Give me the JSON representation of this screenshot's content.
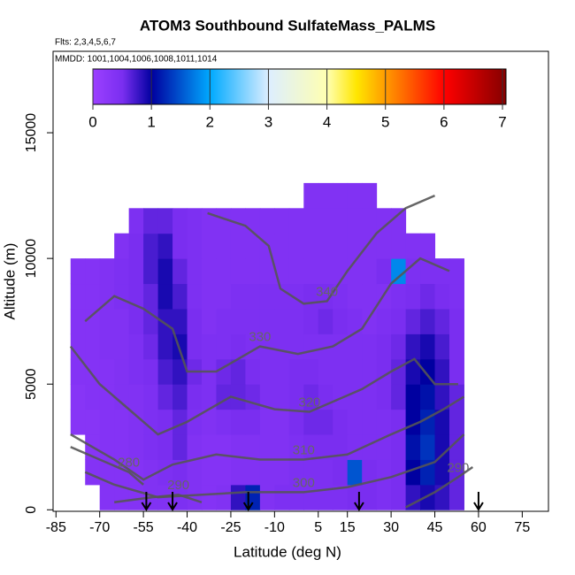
{
  "chart_data": {
    "type": "heatmap",
    "title": "ATOM3 Southbound SulfateMass_PALMS",
    "subtitle": "Flts: 2,3,4,5,6,7",
    "annotation": "MMDD: 1001,1004,1006,1008,1011,1014",
    "x_label": "Latitude (deg N)",
    "y_label": "Altitude (m)",
    "xlim": [
      -86,
      84
    ],
    "ylim": [
      -60,
      18240
    ],
    "xticks": [
      -85,
      -70,
      -55,
      -40,
      -25,
      -10,
      5,
      15,
      30,
      45,
      60,
      75
    ],
    "yticks": [
      0,
      5000,
      10000,
      15000
    ],
    "colorbar": {
      "lim": [
        0,
        7.06
      ],
      "ticks": [
        0,
        1,
        2,
        3,
        4,
        5,
        6,
        7
      ],
      "colorscale": [
        [
          0,
          "#9b40ff"
        ],
        [
          0.5,
          "#7a2ef0"
        ],
        [
          1,
          "#0000a0"
        ],
        [
          2,
          "#00aaff"
        ],
        [
          3,
          "#ddeeff"
        ],
        [
          4,
          "#ffffb0"
        ],
        [
          4.5,
          "#ffe600"
        ],
        [
          5,
          "#ff9a00"
        ],
        [
          6,
          "#ff0000"
        ],
        [
          7,
          "#8b0000"
        ]
      ]
    },
    "heatmap": {
      "x_edges": [
        -80,
        -75,
        -70,
        -65,
        -60,
        -55,
        -50,
        -45,
        -40,
        -35,
        -30,
        -25,
        -20,
        -15,
        -10,
        -5,
        0,
        5,
        10,
        15,
        20,
        25,
        30,
        35,
        40,
        45,
        50,
        55
      ],
      "y_edges": [
        0,
        1000,
        2000,
        3000,
        4000,
        5000,
        6000,
        7000,
        8000,
        9000,
        10000,
        11000,
        12000,
        13000
      ],
      "values": [
        [
          null,
          null,
          0.35,
          0.35,
          0.35,
          0.4,
          0.4,
          0.45,
          0.4,
          0.35,
          0.4,
          0.8,
          1.2,
          0.4,
          0.45,
          0.45,
          0.45,
          0.45,
          0.45,
          0.5,
          0.5,
          0.45,
          0.5,
          0.8,
          0.9,
          0.8,
          0.6
        ],
        [
          null,
          0.35,
          0.35,
          0.35,
          0.35,
          0.4,
          0.45,
          0.5,
          0.4,
          0.35,
          0.35,
          0.4,
          0.4,
          0.4,
          0.4,
          0.45,
          0.45,
          0.45,
          0.5,
          1.5,
          0.5,
          0.45,
          0.5,
          1.0,
          1.2,
          0.9,
          0.6
        ],
        [
          null,
          0.3,
          0.35,
          0.35,
          0.4,
          0.45,
          0.5,
          0.6,
          0.4,
          0.35,
          0.35,
          0.4,
          0.4,
          0.4,
          0.4,
          0.45,
          0.5,
          0.5,
          0.5,
          0.45,
          0.45,
          0.45,
          0.5,
          1.1,
          1.3,
          0.9,
          0.6
        ],
        [
          0.3,
          0.3,
          0.35,
          0.35,
          0.4,
          0.45,
          0.5,
          0.6,
          0.45,
          0.4,
          0.45,
          0.5,
          0.5,
          0.4,
          0.4,
          0.5,
          0.55,
          0.55,
          0.5,
          0.45,
          0.45,
          0.45,
          0.5,
          1.0,
          1.2,
          0.9,
          0.6
        ],
        [
          0.3,
          0.35,
          0.35,
          0.4,
          0.4,
          0.45,
          0.6,
          0.7,
          0.5,
          0.45,
          0.6,
          0.6,
          0.55,
          0.45,
          0.45,
          0.5,
          0.55,
          0.5,
          0.45,
          0.45,
          0.45,
          0.5,
          0.6,
          1.0,
          1.1,
          0.8,
          0.6
        ],
        [
          0.35,
          0.35,
          0.35,
          0.4,
          0.45,
          0.5,
          0.7,
          0.8,
          0.55,
          0.45,
          0.55,
          0.6,
          0.5,
          0.45,
          0.45,
          0.5,
          0.5,
          0.45,
          0.45,
          0.45,
          0.45,
          0.5,
          0.6,
          0.9,
          1.0,
          0.8,
          0.5
        ],
        [
          0.35,
          0.35,
          0.4,
          0.4,
          0.45,
          0.55,
          0.8,
          0.9,
          0.5,
          0.45,
          0.45,
          0.5,
          0.45,
          0.45,
          0.45,
          0.45,
          0.45,
          0.45,
          0.45,
          0.45,
          0.45,
          0.5,
          0.55,
          0.8,
          0.9,
          0.7,
          0.5
        ],
        [
          0.35,
          0.35,
          0.4,
          0.4,
          0.5,
          0.6,
          0.8,
          0.8,
          0.5,
          0.4,
          0.45,
          0.45,
          0.45,
          0.45,
          0.45,
          0.45,
          0.5,
          0.55,
          0.5,
          0.45,
          0.4,
          0.45,
          0.5,
          0.6,
          0.7,
          0.6,
          0.5
        ],
        [
          0.35,
          0.35,
          0.4,
          0.45,
          0.5,
          0.6,
          0.9,
          0.7,
          0.45,
          0.4,
          0.4,
          0.45,
          0.45,
          0.45,
          0.45,
          0.45,
          0.5,
          0.5,
          0.45,
          0.4,
          0.4,
          0.4,
          0.45,
          0.5,
          0.55,
          0.5,
          0.45
        ],
        [
          0.35,
          0.35,
          0.4,
          0.45,
          0.5,
          0.7,
          0.9,
          0.6,
          0.45,
          0.4,
          0.4,
          0.4,
          0.4,
          0.4,
          0.4,
          0.4,
          0.4,
          0.4,
          0.4,
          0.4,
          0.4,
          0.5,
          1.8,
          0.45,
          0.45,
          0.45,
          0.45
        ],
        [
          null,
          null,
          null,
          0.4,
          0.5,
          0.7,
          0.8,
          0.5,
          0.45,
          0.4,
          0.4,
          0.4,
          0.4,
          0.4,
          0.4,
          0.4,
          0.4,
          0.4,
          0.4,
          0.4,
          0.4,
          0.4,
          0.4,
          0.4,
          0.4,
          null,
          null
        ],
        [
          null,
          null,
          null,
          null,
          0.45,
          0.6,
          0.6,
          0.5,
          0.45,
          0.4,
          0.4,
          0.4,
          0.4,
          0.4,
          0.4,
          0.4,
          0.4,
          0.4,
          0.4,
          0.4,
          0.4,
          0.4,
          0.4,
          null,
          null,
          null,
          null
        ],
        [
          null,
          null,
          null,
          null,
          null,
          null,
          null,
          null,
          null,
          null,
          null,
          null,
          null,
          null,
          null,
          null,
          0.4,
          0.4,
          0.4,
          0.4,
          0.4,
          null,
          null,
          null,
          null,
          null,
          null
        ]
      ]
    },
    "contours": [
      {
        "level": 340,
        "x": [
          -33,
          -20,
          -12,
          -8,
          0,
          8,
          15,
          25,
          35,
          45
        ],
        "y": [
          11800,
          11300,
          10500,
          8800,
          8200,
          8300,
          9500,
          11000,
          12000,
          12500
        ]
      },
      {
        "level": 330,
        "x": [
          -75,
          -65,
          -55,
          -45,
          -40,
          -30,
          -15,
          -2,
          10,
          20,
          30,
          40,
          50
        ],
        "y": [
          7500,
          8500,
          8000,
          7200,
          5500,
          5500,
          6500,
          6200,
          6500,
          7200,
          9000,
          10000,
          9500
        ]
      },
      {
        "level": 320,
        "x": [
          -80,
          -70,
          -60,
          -50,
          -40,
          -25,
          -10,
          2,
          10,
          20,
          30,
          38,
          45,
          53
        ],
        "y": [
          6500,
          5000,
          4000,
          3000,
          3500,
          4500,
          4000,
          3900,
          4300,
          4800,
          5500,
          6000,
          5000,
          5000
        ]
      },
      {
        "level": 310,
        "x": [
          -80,
          -65,
          -55,
          -45,
          -30,
          -15,
          0,
          15,
          30,
          40,
          48,
          55
        ],
        "y": [
          3000,
          2000,
          1200,
          1800,
          2200,
          2000,
          2000,
          2200,
          3000,
          3500,
          4000,
          4500
        ]
      },
      {
        "level": 300,
        "x": [
          -75,
          -65,
          -50,
          -35,
          -20,
          0,
          15,
          30,
          45,
          55
        ],
        "y": [
          1500,
          1000,
          500,
          600,
          700,
          700,
          900,
          1300,
          1900,
          3000
        ]
      },
      {
        "level": 290,
        "x": [
          35,
          45,
          53,
          58
        ],
        "y": [
          100,
          700,
          1300,
          1700
        ]
      },
      {
        "level": 290,
        "x": [
          -65,
          -52,
          -43,
          -35
        ],
        "y": [
          300,
          500,
          600,
          300
        ]
      },
      {
        "level": 280,
        "x": [
          -80,
          -70,
          -60,
          -55
        ],
        "y": [
          2500,
          2000,
          1500,
          1000
        ]
      }
    ],
    "markers": [
      -54,
      -45,
      -19,
      19,
      60
    ]
  }
}
